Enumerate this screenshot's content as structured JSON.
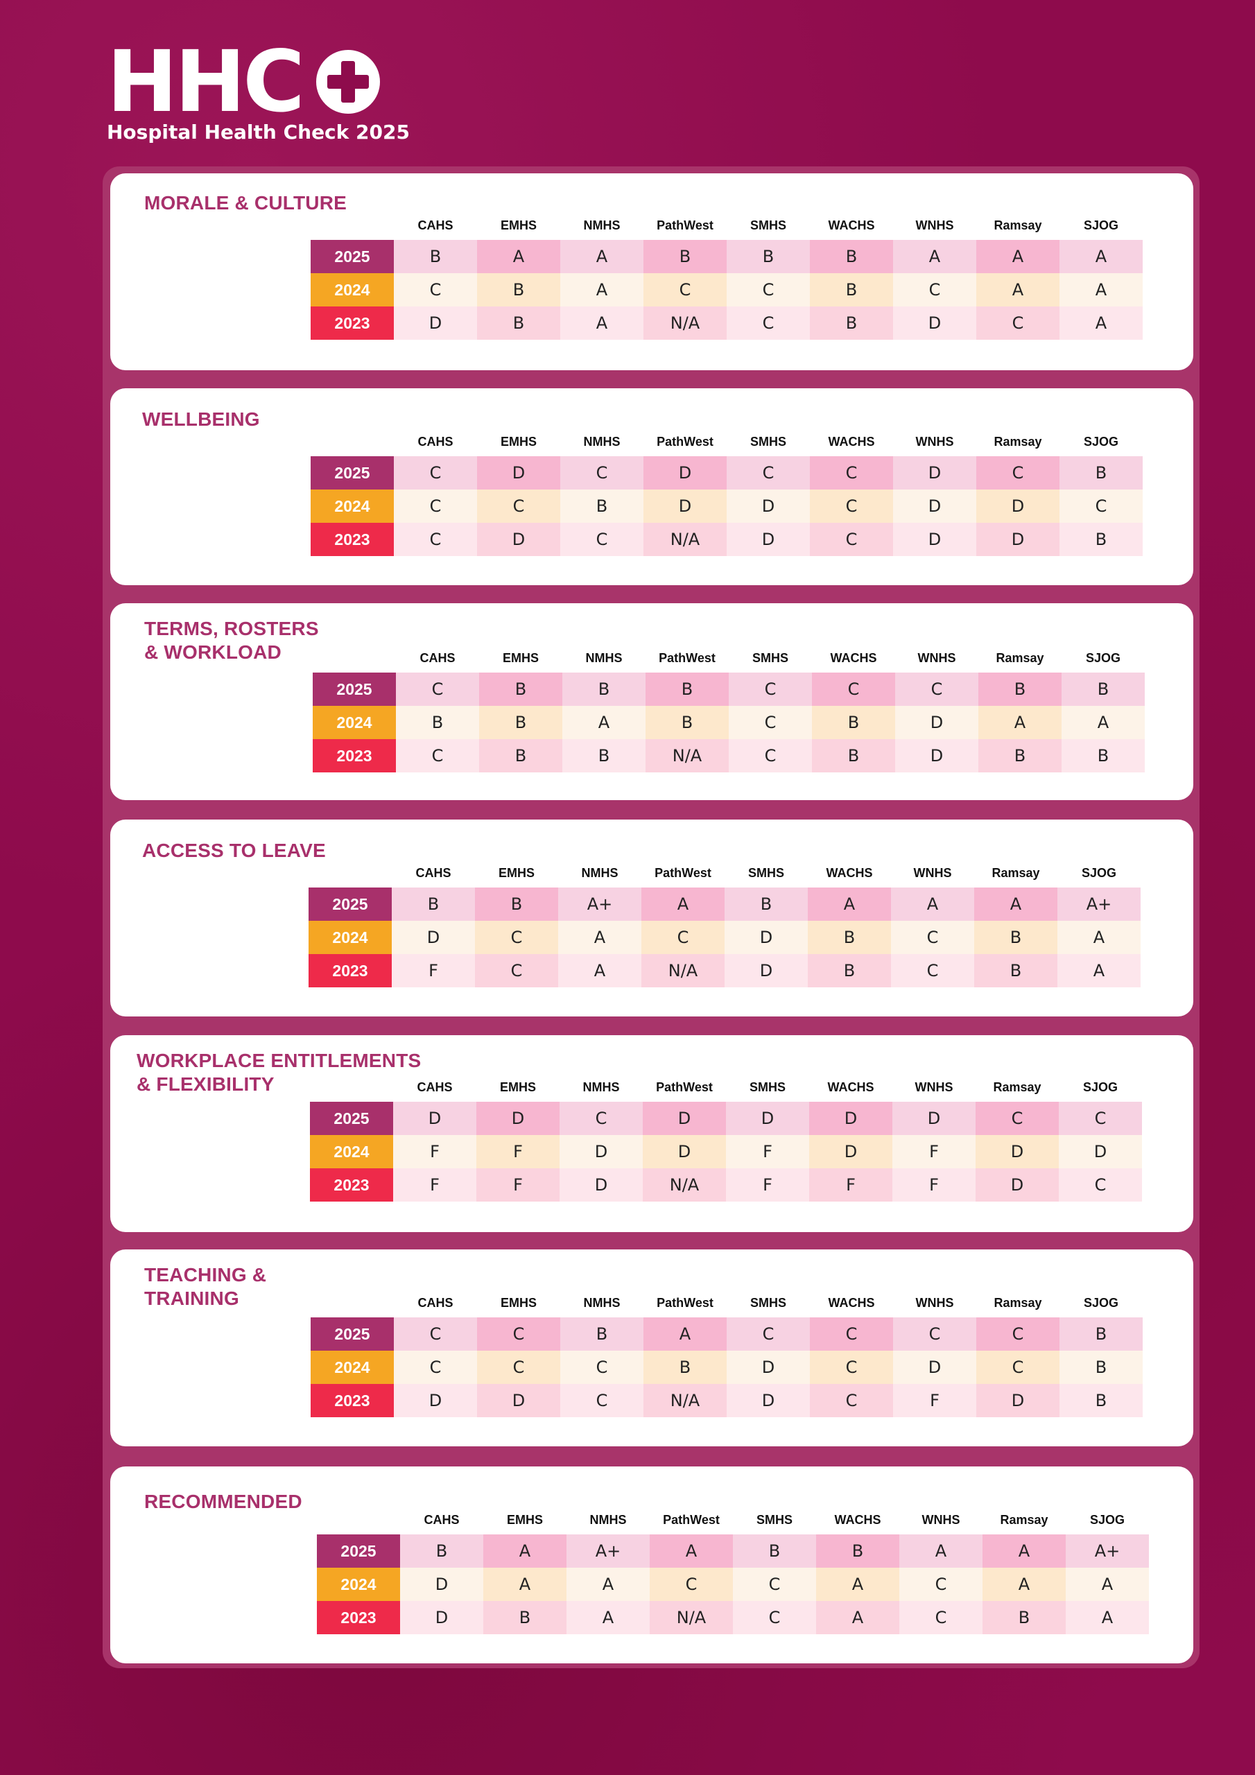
{
  "brand": {
    "logo_text": "HHC",
    "subtitle": "Hospital Health Check 2025",
    "icon": "medical-cross-icon",
    "colors": {
      "background": "#8e0b4c",
      "accent": "#a8306b",
      "y2025": "#a8306b",
      "y2024": "#f5a623",
      "y2023": "#ee2a4a"
    }
  },
  "columns": [
    "CAHS",
    "EMHS",
    "NMHS",
    "PathWest",
    "SMHS",
    "WACHS",
    "WNHS",
    "Ramsay",
    "SJOG"
  ],
  "years": [
    "2025",
    "2024",
    "2023"
  ],
  "sections": [
    {
      "title": "MORALE & CULTURE",
      "rows": [
        [
          "B",
          "A",
          "A",
          "B",
          "B",
          "B",
          "A",
          "A",
          "A"
        ],
        [
          "C",
          "B",
          "A",
          "C",
          "C",
          "B",
          "C",
          "A",
          "A"
        ],
        [
          "D",
          "B",
          "A",
          "N/A",
          "C",
          "B",
          "D",
          "C",
          "A"
        ]
      ]
    },
    {
      "title": "WELLBEING",
      "rows": [
        [
          "C",
          "D",
          "C",
          "D",
          "C",
          "C",
          "D",
          "C",
          "B"
        ],
        [
          "C",
          "C",
          "B",
          "D",
          "D",
          "C",
          "D",
          "D",
          "C"
        ],
        [
          "C",
          "D",
          "C",
          "N/A",
          "D",
          "C",
          "D",
          "D",
          "B"
        ]
      ]
    },
    {
      "title": "TERMS, ROSTERS\n& WORKLOAD",
      "rows": [
        [
          "C",
          "B",
          "B",
          "B",
          "C",
          "C",
          "C",
          "B",
          "B"
        ],
        [
          "B",
          "B",
          "A",
          "B",
          "C",
          "B",
          "D",
          "A",
          "A"
        ],
        [
          "C",
          "B",
          "B",
          "N/A",
          "C",
          "B",
          "D",
          "B",
          "B"
        ]
      ]
    },
    {
      "title": "ACCESS TO LEAVE",
      "rows": [
        [
          "B",
          "B",
          "A+",
          "A",
          "B",
          "A",
          "A",
          "A",
          "A+"
        ],
        [
          "D",
          "C",
          "A",
          "C",
          "D",
          "B",
          "C",
          "B",
          "A"
        ],
        [
          "F",
          "C",
          "A",
          "N/A",
          "D",
          "B",
          "C",
          "B",
          "A"
        ]
      ]
    },
    {
      "title": "WORKPLACE ENTITLEMENTS\n& FLEXIBILITY",
      "rows": [
        [
          "D",
          "D",
          "C",
          "D",
          "D",
          "D",
          "D",
          "C",
          "C"
        ],
        [
          "F",
          "F",
          "D",
          "D",
          "F",
          "D",
          "F",
          "D",
          "D"
        ],
        [
          "F",
          "F",
          "D",
          "N/A",
          "F",
          "F",
          "F",
          "D",
          "C"
        ]
      ]
    },
    {
      "title": "TEACHING &\nTRAINING",
      "rows": [
        [
          "C",
          "C",
          "B",
          "A",
          "C",
          "C",
          "C",
          "C",
          "B"
        ],
        [
          "C",
          "C",
          "C",
          "B",
          "D",
          "C",
          "D",
          "C",
          "B"
        ],
        [
          "D",
          "D",
          "C",
          "N/A",
          "D",
          "C",
          "F",
          "D",
          "B"
        ]
      ]
    },
    {
      "title": "RECOMMENDED",
      "rows": [
        [
          "B",
          "A",
          "A+",
          "A",
          "B",
          "B",
          "A",
          "A",
          "A+"
        ],
        [
          "D",
          "A",
          "A",
          "C",
          "C",
          "A",
          "C",
          "A",
          "A"
        ],
        [
          "D",
          "B",
          "A",
          "N/A",
          "C",
          "A",
          "C",
          "B",
          "A"
        ]
      ]
    }
  ]
}
